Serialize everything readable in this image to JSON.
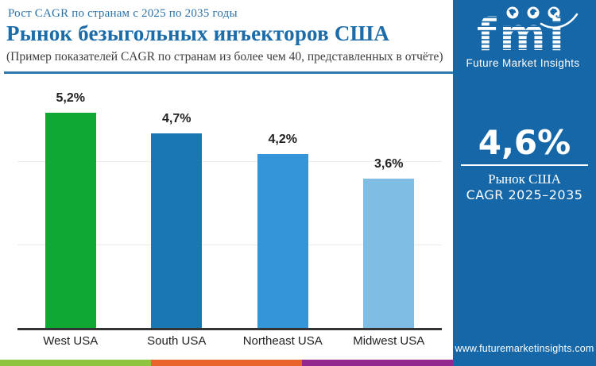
{
  "header": {
    "eyebrow": "Рост CAGR по странам с 2025 по 2035 годы",
    "title": "Рынок безыгольных инъекторов США",
    "subtitle": "(Пример показателей CAGR по странам из более чем 40, представленных в отчёте)"
  },
  "chart_data": {
    "type": "bar",
    "categories": [
      "West USA",
      "South USA",
      "Northeast USA",
      "Midwest USA"
    ],
    "values": [
      5.2,
      4.7,
      4.2,
      3.6
    ],
    "value_labels": [
      "5,2%",
      "4,7%",
      "4,2%",
      "3,6%"
    ],
    "bar_colors": [
      "#0ea832",
      "#1b77b4",
      "#3496d8",
      "#7fbde4"
    ],
    "title": "Рынок безыгольных инъекторов США",
    "xlabel": "",
    "ylabel": "",
    "ylim": [
      0,
      6
    ],
    "gridlines_at": [
      2,
      4
    ],
    "grid": "horizontal-faint",
    "legend": "none"
  },
  "sidebar": {
    "logo": {
      "text": "fmi",
      "tagline": "Future Market Insights",
      "globes": [
        "americas-globe-icon",
        "europe-globe-icon",
        "asia-globe-icon"
      ]
    },
    "stat_value": "4,6%",
    "market_label": "Рынок США",
    "cagr_label": "CAGR 2025–2035",
    "website": "www.futuremarketinsights.com",
    "background_color": "#1567a8"
  },
  "footer": {
    "stripe_colors": [
      "#8fc43f",
      "#e7632a",
      "#92278f"
    ]
  },
  "colors": {
    "title_blue": "#1b6ca9",
    "rule_blue": "#3279ae",
    "axis": "#333333",
    "gridline": "#e8ecef"
  }
}
